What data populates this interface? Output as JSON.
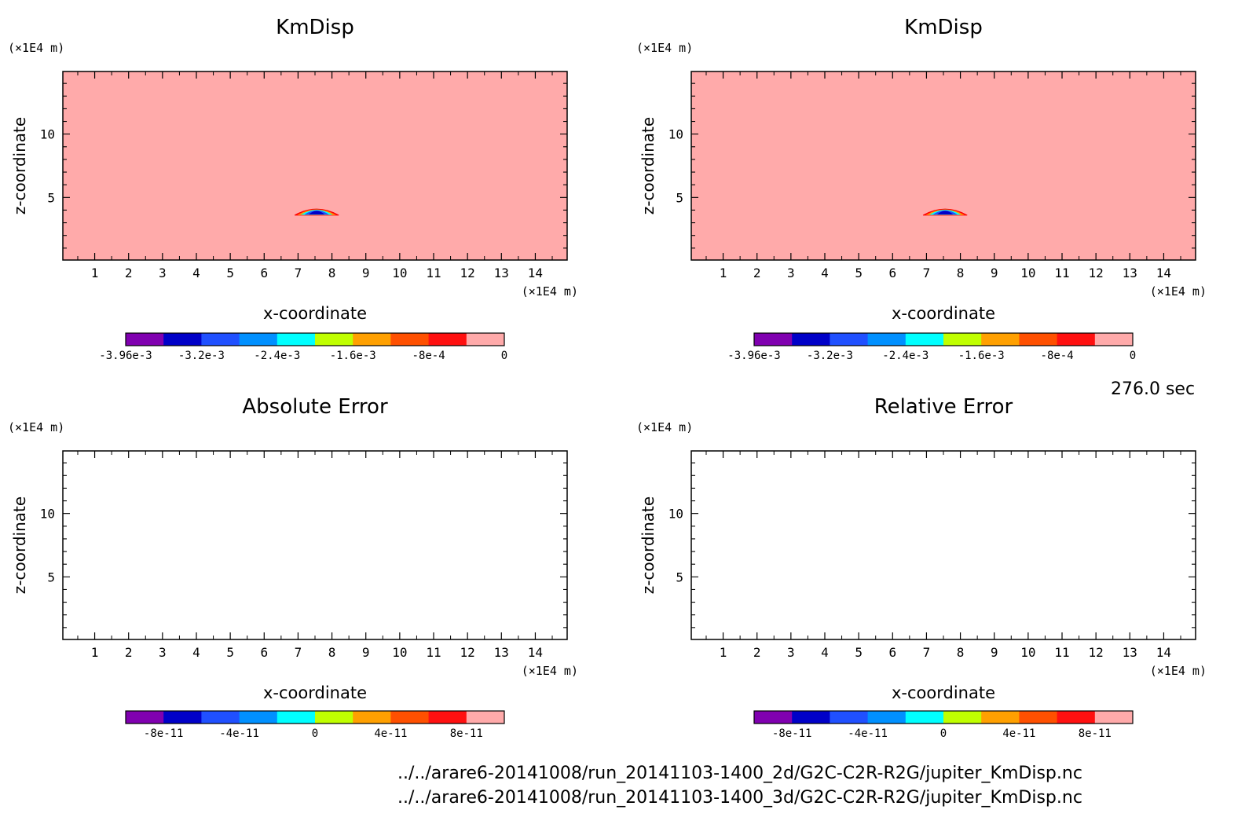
{
  "time_label": "276.0 sec",
  "files": [
    "../../arare6-20141008/run_20141103-1400_2d/G2C-C2R-R2G/jupiter_KmDisp.nc",
    "../../arare6-20141008/run_20141103-1400_3d/G2C-C2R-R2G/jupiter_KmDisp.nc"
  ],
  "chart_data": [
    {
      "id": "tl",
      "type": "heatmap",
      "title": "KmDisp",
      "xlabel": "x-coordinate",
      "ylabel": "z-coordinate",
      "x_unit": "(×1E4 m)",
      "y_unit": "(×1E4 m)",
      "xlim": [
        0.06,
        14.94
      ],
      "ylim": [
        0.06,
        14.94
      ],
      "x_ticks": [
        "1",
        "2",
        "3",
        "4",
        "5",
        "6",
        "7",
        "8",
        "9",
        "10",
        "11",
        "12",
        "13",
        "14"
      ],
      "y_ticks": [
        "5",
        "10"
      ],
      "background_value": 0,
      "feature": {
        "x_range": [
          6.9,
          8.2
        ],
        "z_range": [
          3.6,
          4.2
        ],
        "min_value": -0.00396
      },
      "colorbar": {
        "colors": [
          "#8000b0",
          "#0000c8",
          "#2050ff",
          "#0090ff",
          "#00ffff",
          "#c0ff00",
          "#ffa000",
          "#ff5000",
          "#ff1010",
          "#ffaaaa"
        ],
        "tick_labels": [
          "-3.96e-3",
          "-3.2e-3",
          "-2.4e-3",
          "-1.6e-3",
          "-8e-4",
          "0"
        ]
      }
    },
    {
      "id": "tr",
      "type": "heatmap",
      "title": "KmDisp",
      "xlabel": "x-coordinate",
      "ylabel": "z-coordinate",
      "x_unit": "(×1E4 m)",
      "y_unit": "(×1E4 m)",
      "xlim": [
        0.06,
        14.94
      ],
      "ylim": [
        0.06,
        14.94
      ],
      "x_ticks": [
        "1",
        "2",
        "3",
        "4",
        "5",
        "6",
        "7",
        "8",
        "9",
        "10",
        "11",
        "12",
        "13",
        "14"
      ],
      "y_ticks": [
        "5",
        "10"
      ],
      "background_value": 0,
      "feature": {
        "x_range": [
          6.9,
          8.2
        ],
        "z_range": [
          3.6,
          4.2
        ],
        "min_value": -0.00396
      },
      "colorbar": {
        "colors": [
          "#8000b0",
          "#0000c8",
          "#2050ff",
          "#0090ff",
          "#00ffff",
          "#c0ff00",
          "#ffa000",
          "#ff5000",
          "#ff1010",
          "#ffaaaa"
        ],
        "tick_labels": [
          "-3.96e-3",
          "-3.2e-3",
          "-2.4e-3",
          "-1.6e-3",
          "-8e-4",
          "0"
        ]
      }
    },
    {
      "id": "bl",
      "type": "heatmap",
      "title": "Absolute Error",
      "xlabel": "x-coordinate",
      "ylabel": "z-coordinate",
      "x_unit": "(×1E4 m)",
      "y_unit": "(×1E4 m)",
      "xlim": [
        0.06,
        14.94
      ],
      "ylim": [
        0.06,
        14.94
      ],
      "x_ticks": [
        "1",
        "2",
        "3",
        "4",
        "5",
        "6",
        "7",
        "8",
        "9",
        "10",
        "11",
        "12",
        "13",
        "14"
      ],
      "y_ticks": [
        "5",
        "10"
      ],
      "background_value": null,
      "colorbar": {
        "colors": [
          "#8000b0",
          "#0000c8",
          "#2050ff",
          "#0090ff",
          "#00ffff",
          "#c0ff00",
          "#ffa000",
          "#ff5000",
          "#ff1010",
          "#ffaaaa"
        ],
        "tick_labels": [
          "-8e-11",
          "-4e-11",
          "0",
          "4e-11",
          "8e-11"
        ]
      }
    },
    {
      "id": "br",
      "type": "heatmap",
      "title": "Relative Error",
      "xlabel": "x-coordinate",
      "ylabel": "z-coordinate",
      "x_unit": "(×1E4 m)",
      "y_unit": "(×1E4 m)",
      "xlim": [
        0.06,
        14.94
      ],
      "ylim": [
        0.06,
        14.94
      ],
      "x_ticks": [
        "1",
        "2",
        "3",
        "4",
        "5",
        "6",
        "7",
        "8",
        "9",
        "10",
        "11",
        "12",
        "13",
        "14"
      ],
      "y_ticks": [
        "5",
        "10"
      ],
      "background_value": null,
      "colorbar": {
        "colors": [
          "#8000b0",
          "#0000c8",
          "#2050ff",
          "#0090ff",
          "#00ffff",
          "#c0ff00",
          "#ffa000",
          "#ff5000",
          "#ff1010",
          "#ffaaaa"
        ],
        "tick_labels": [
          "-8e-11",
          "-4e-11",
          "0",
          "4e-11",
          "8e-11"
        ]
      }
    }
  ]
}
